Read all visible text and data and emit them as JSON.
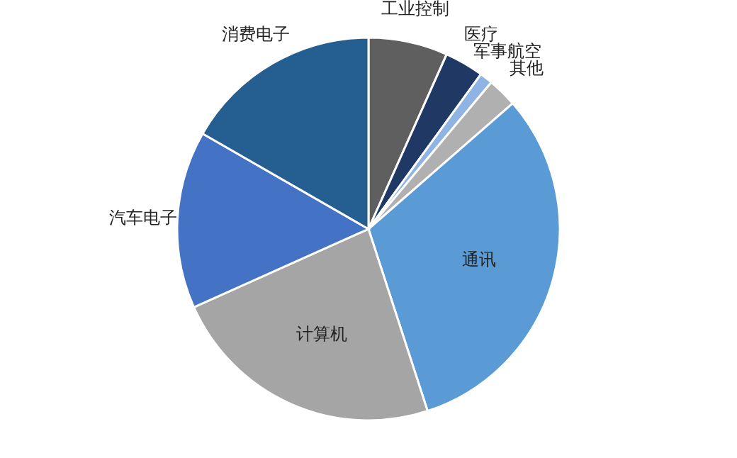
{
  "chart_data": {
    "type": "pie",
    "categories": [
      "工业控制",
      "医疗",
      "军事航空",
      "其他",
      "通讯",
      "计算机",
      "汽车电子",
      "消费电子"
    ],
    "values": [
      6.7,
      3.3,
      1.1,
      2.5,
      31.4,
      23.3,
      15,
      16.7
    ],
    "colors": [
      "#5f5f5f",
      "#1f3864",
      "#8fb4e3",
      "#b0b0b0",
      "#5b9bd5",
      "#a5a5a5",
      "#4472c4",
      "#255e91"
    ]
  }
}
